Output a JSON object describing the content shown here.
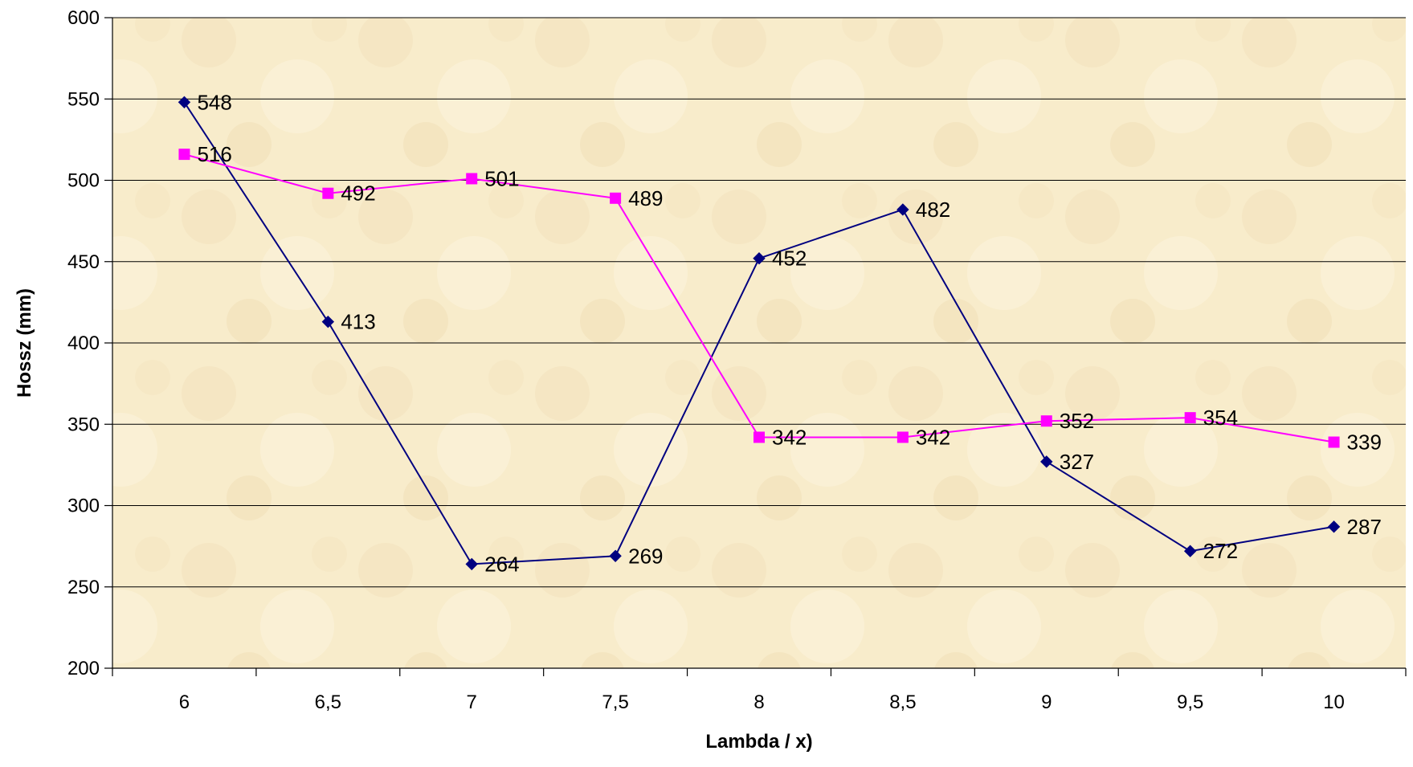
{
  "chart_data": {
    "type": "line",
    "categories": [
      "6",
      "6,5",
      "7",
      "7,5",
      "8",
      "8,5",
      "9",
      "9,5",
      "10"
    ],
    "series": [
      {
        "values": [
          548,
          413,
          264,
          269,
          452,
          482,
          327,
          272,
          287
        ],
        "color": "#000080",
        "marker": "diamond"
      },
      {
        "values": [
          516,
          492,
          501,
          489,
          342,
          342,
          352,
          354,
          339
        ],
        "color": "#FF00FF",
        "marker": "square"
      }
    ],
    "title": "",
    "xlabel": "Lambda / x)",
    "ylabel": "Hossz (mm)",
    "ylim": [
      200,
      600
    ],
    "yticks": [
      "200",
      "250",
      "300",
      "350",
      "400",
      "450",
      "500",
      "550",
      "600"
    ],
    "grid": true,
    "legend": "none",
    "plot_background": "#F8ECCB"
  }
}
